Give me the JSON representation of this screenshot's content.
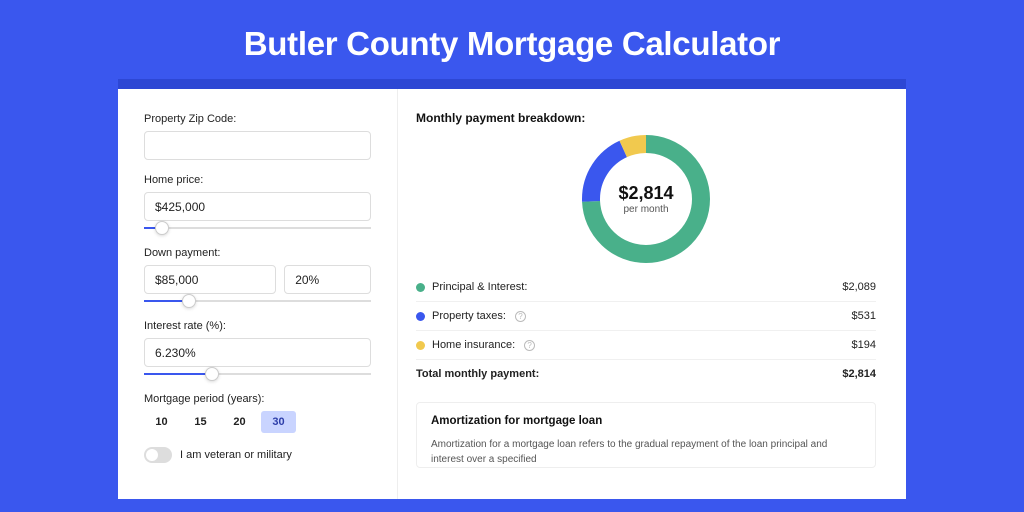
{
  "page": {
    "title": "Butler County Mortgage Calculator",
    "background_color": "#3a57ee",
    "card_accent_color": "#2d47d4"
  },
  "form": {
    "zip": {
      "label": "Property Zip Code:",
      "value": ""
    },
    "home_price": {
      "label": "Home price:",
      "value": "$425,000",
      "slider_pct": 8
    },
    "down_payment": {
      "label": "Down payment:",
      "value": "$85,000",
      "pct_value": "20%",
      "slider_pct": 20
    },
    "interest_rate": {
      "label": "Interest rate (%):",
      "value": "6.230%",
      "slider_pct": 30
    },
    "period": {
      "label": "Mortgage period (years):",
      "options": [
        "10",
        "15",
        "20",
        "30"
      ],
      "selected": "30"
    },
    "veteran": {
      "label": "I am veteran or military",
      "on": false
    }
  },
  "breakdown": {
    "title": "Monthly payment breakdown:",
    "center_amount": "$2,814",
    "center_sub": "per month",
    "donut": {
      "series": [
        {
          "key": "principal_interest",
          "label": "Principal & Interest:",
          "value": 2089,
          "value_text": "$2,089",
          "color": "#49b08a",
          "info": false
        },
        {
          "key": "property_taxes",
          "label": "Property taxes:",
          "value": 531,
          "value_text": "$531",
          "color": "#3a57ee",
          "info": true
        },
        {
          "key": "home_insurance",
          "label": "Home insurance:",
          "value": 194,
          "value_text": "$194",
          "color": "#f1c94e",
          "info": true
        }
      ],
      "total_label": "Total monthly payment:",
      "total_text": "$2,814",
      "ring_thickness": 18,
      "size": 128
    }
  },
  "amortization": {
    "title": "Amortization for mortgage loan",
    "text": "Amortization for a mortgage loan refers to the gradual repayment of the loan principal and interest over a specified"
  }
}
